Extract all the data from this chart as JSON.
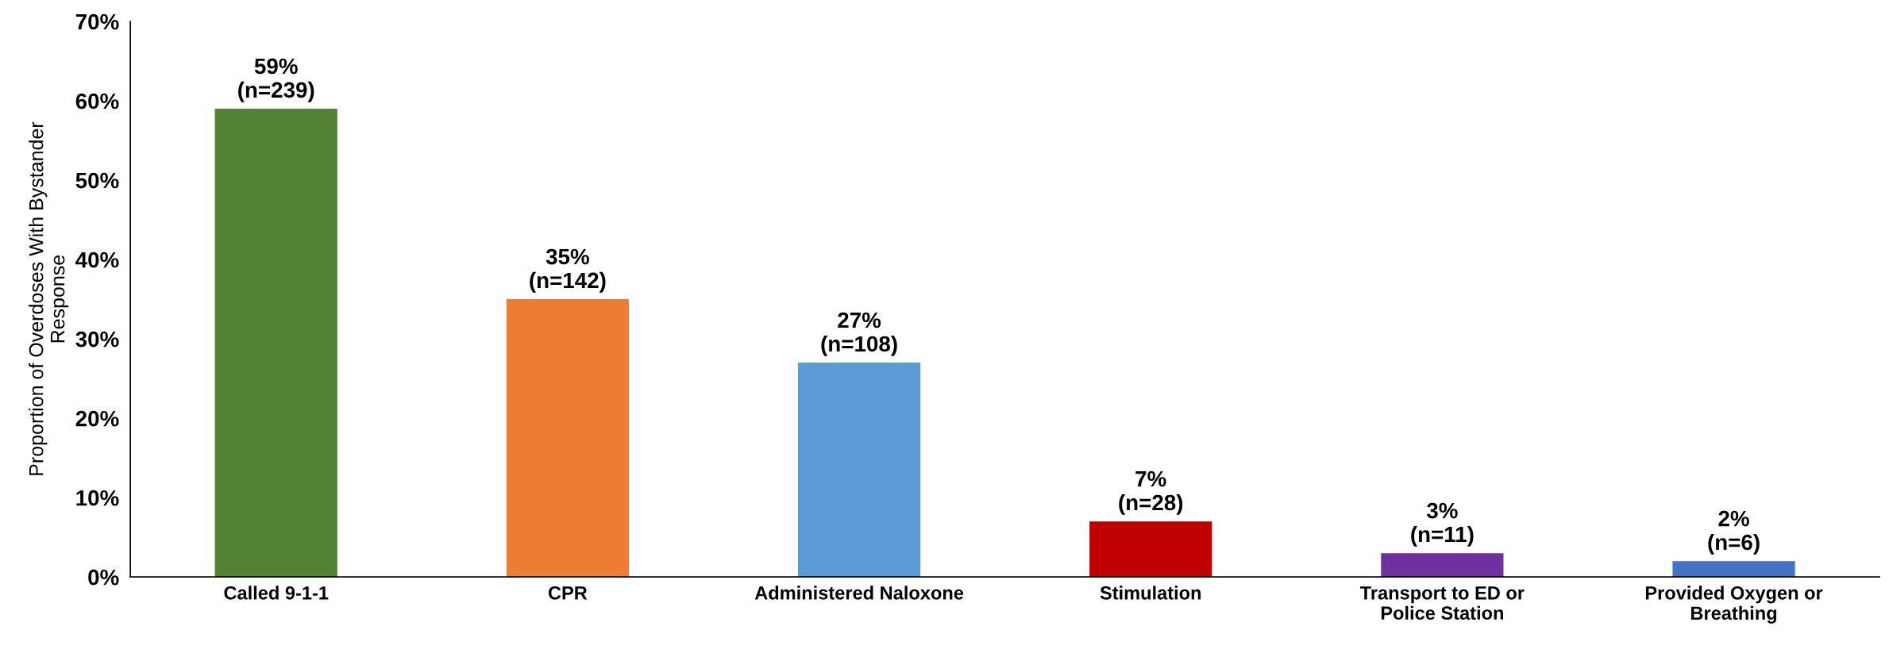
{
  "chart_data": {
    "type": "bar",
    "ylabel": "Proportion of Overdoses With Bystander\nResponse",
    "categories": [
      "Called 9-1-1",
      "CPR",
      "Administered Naloxone",
      "Stimulation",
      "Transport to ED or\nPolice Station",
      "Provided Oxygen or\nBreathing"
    ],
    "values": [
      59,
      35,
      27,
      7,
      3,
      2
    ],
    "colors": [
      "#548235",
      "#ed7d31",
      "#5b9bd5",
      "#c00000",
      "#7030a0",
      "#4472c4"
    ],
    "value_labels": [
      "59%\n(n=239)",
      "35%\n(n=142)",
      "27%\n(n=108)",
      "7%\n(n=28)",
      "3%\n(n=11)",
      "2%\n(n=6)"
    ],
    "ylim": [
      0,
      70
    ],
    "yticks": [
      {
        "value": 0,
        "label": "0%"
      },
      {
        "value": 10,
        "label": "10%"
      },
      {
        "value": 20,
        "label": "20%"
      },
      {
        "value": 30,
        "label": "30%"
      },
      {
        "value": 40,
        "label": "40%"
      },
      {
        "value": 50,
        "label": "50%"
      },
      {
        "value": 60,
        "label": "60%"
      },
      {
        "value": 70,
        "label": "70%"
      }
    ],
    "grid": false
  }
}
